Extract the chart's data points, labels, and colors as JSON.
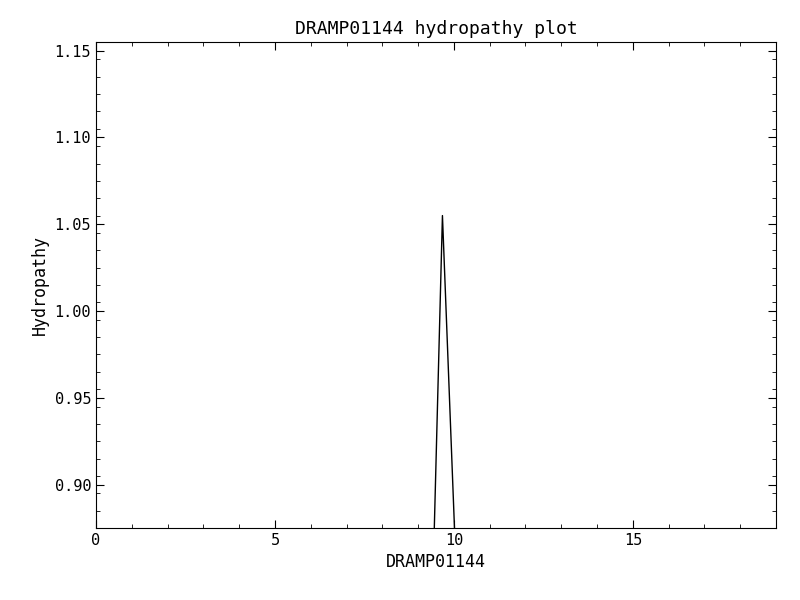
{
  "title": "DRAMP01144 hydropathy plot",
  "xlabel": "DRAMP01144",
  "ylabel": "Hydropathy",
  "xlim": [
    0,
    19
  ],
  "ylim": [
    0.875,
    1.155
  ],
  "xticks": [
    0,
    5,
    10,
    15
  ],
  "yticks": [
    0.9,
    0.95,
    1.0,
    1.05,
    1.1,
    1.15
  ],
  "line_x": [
    9.45,
    9.68,
    10.02
  ],
  "line_y": [
    0.873,
    1.055,
    0.873
  ],
  "line_color": "#000000",
  "line_width": 1.0,
  "bg_color": "#ffffff",
  "font_family": "monospace",
  "title_fontsize": 13,
  "label_fontsize": 12,
  "tick_fontsize": 11,
  "minor_xticks": [
    1,
    2,
    3,
    4,
    6,
    7,
    8,
    9,
    11,
    12,
    13,
    14,
    16,
    17,
    18
  ],
  "minor_yticks": [
    0.875,
    0.885,
    0.895,
    0.905,
    0.915,
    0.925,
    0.935,
    0.945,
    0.955,
    0.965,
    0.975,
    0.985,
    0.995,
    1.005,
    1.015,
    1.025,
    1.035,
    1.045,
    1.055,
    1.065,
    1.075,
    1.085,
    1.095,
    1.105,
    1.115,
    1.125,
    1.135,
    1.145,
    1.155
  ]
}
